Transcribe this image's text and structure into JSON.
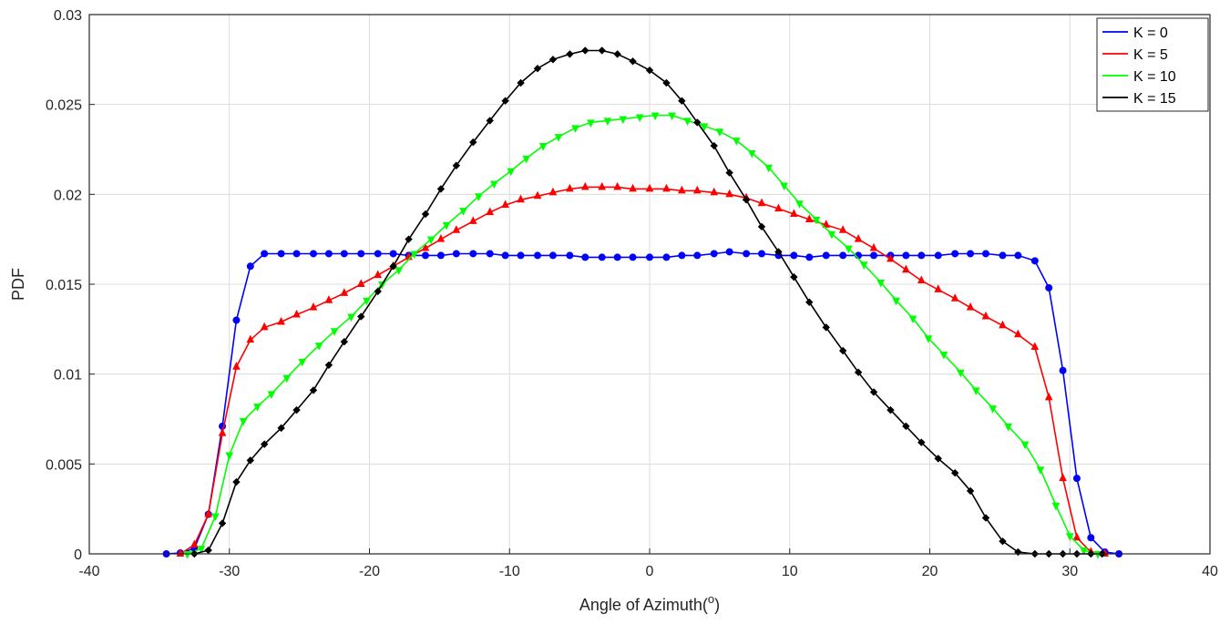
{
  "chart_data": {
    "type": "line",
    "title": "",
    "xlabel": "Angle of Azimuth(",
    "xlabel_sup": "o",
    "xlabel_end": ")",
    "ylabel": "PDF",
    "xlim": [
      -40,
      40
    ],
    "ylim": [
      0,
      0.03
    ],
    "xticks": [
      -40,
      -30,
      -20,
      -10,
      0,
      10,
      20,
      30,
      40
    ],
    "yticks": [
      0,
      0.005,
      0.01,
      0.015,
      0.02,
      0.025,
      0.03
    ],
    "xtick_labels": [
      "-40",
      "-30",
      "-20",
      "-10",
      "0",
      "10",
      "20",
      "30",
      "40"
    ],
    "ytick_labels": [
      "0",
      "0.005",
      "0.01",
      "0.015",
      "0.02",
      "0.025",
      "0.03"
    ],
    "grid": true,
    "legend_position": "top-right",
    "series": [
      {
        "name": "K = 0",
        "color": "#0000ff",
        "marker": "circle",
        "x": [
          -34.5,
          -33.5,
          -32.5,
          -31.5,
          -30.5,
          -29.5,
          -28.5,
          -27.5,
          -26.3,
          -25.2,
          -24.0,
          -22.9,
          -21.8,
          -20.6,
          -19.4,
          -18.3,
          -17.2,
          -16.0,
          -14.9,
          -13.8,
          -12.6,
          -11.4,
          -10.3,
          -9.2,
          -8.0,
          -6.9,
          -5.7,
          -4.6,
          -3.4,
          -2.3,
          -1.2,
          0.0,
          1.2,
          2.3,
          3.4,
          4.6,
          5.7,
          6.9,
          8.0,
          9.2,
          10.3,
          11.4,
          12.6,
          13.8,
          14.9,
          16.0,
          17.2,
          18.3,
          19.4,
          20.6,
          21.8,
          22.9,
          24.0,
          25.2,
          26.3,
          27.5,
          28.5,
          29.5,
          30.5,
          31.5,
          32.5,
          33.5
        ],
        "y": [
          0.0,
          5e-05,
          0.0003,
          0.0022,
          0.0071,
          0.013,
          0.016,
          0.0167,
          0.0167,
          0.0167,
          0.0167,
          0.0167,
          0.0167,
          0.0167,
          0.0167,
          0.0167,
          0.0166,
          0.0166,
          0.0166,
          0.0167,
          0.0167,
          0.0167,
          0.0166,
          0.0166,
          0.0166,
          0.0166,
          0.0166,
          0.0165,
          0.0165,
          0.0165,
          0.0165,
          0.0165,
          0.0165,
          0.0166,
          0.0166,
          0.0167,
          0.0168,
          0.0167,
          0.0167,
          0.0166,
          0.0166,
          0.0165,
          0.0166,
          0.0166,
          0.0166,
          0.0166,
          0.0166,
          0.0166,
          0.0166,
          0.0166,
          0.0167,
          0.0167,
          0.0167,
          0.0166,
          0.0166,
          0.0163,
          0.0148,
          0.0102,
          0.0042,
          0.0009,
          0.0001,
          0.0
        ]
      },
      {
        "name": "K = 5",
        "color": "#ff0000",
        "marker": "triangle-up",
        "x": [
          -33.5,
          -32.5,
          -31.5,
          -30.5,
          -29.5,
          -28.5,
          -27.5,
          -26.3,
          -25.2,
          -24.0,
          -22.9,
          -21.8,
          -20.6,
          -19.4,
          -18.3,
          -17.2,
          -16.0,
          -14.9,
          -13.8,
          -12.6,
          -11.4,
          -10.3,
          -9.2,
          -8.0,
          -6.9,
          -5.7,
          -4.6,
          -3.4,
          -2.3,
          -1.2,
          0.0,
          1.2,
          2.3,
          3.4,
          4.6,
          5.7,
          6.9,
          8.0,
          9.2,
          10.3,
          11.4,
          12.6,
          13.8,
          14.9,
          16.0,
          17.2,
          18.3,
          19.4,
          20.6,
          21.8,
          22.9,
          24.0,
          25.2,
          26.3,
          27.5,
          28.5,
          29.5,
          30.5,
          31.5,
          32.5
        ],
        "y": [
          0.0,
          0.0005,
          0.0022,
          0.0067,
          0.0104,
          0.0119,
          0.0126,
          0.0129,
          0.0133,
          0.0137,
          0.0141,
          0.0145,
          0.015,
          0.0155,
          0.016,
          0.0165,
          0.017,
          0.0175,
          0.018,
          0.0185,
          0.019,
          0.0194,
          0.0197,
          0.0199,
          0.0201,
          0.0203,
          0.0204,
          0.0204,
          0.0204,
          0.0203,
          0.0203,
          0.0203,
          0.0202,
          0.0202,
          0.0201,
          0.02,
          0.0198,
          0.0195,
          0.0192,
          0.0189,
          0.0186,
          0.0183,
          0.018,
          0.0175,
          0.017,
          0.0164,
          0.0158,
          0.0152,
          0.0147,
          0.0142,
          0.0137,
          0.0132,
          0.0127,
          0.0122,
          0.0115,
          0.0087,
          0.0042,
          0.0009,
          0.0001,
          0.0
        ]
      },
      {
        "name": "K = 10",
        "color": "#00ff00",
        "marker": "triangle-down",
        "x": [
          -33.0,
          -32.0,
          -31.0,
          -30.0,
          -29.0,
          -28.0,
          -27.0,
          -25.9,
          -24.8,
          -23.6,
          -22.5,
          -21.3,
          -20.2,
          -19.1,
          -17.9,
          -16.8,
          -15.6,
          -14.5,
          -13.3,
          -12.2,
          -11.1,
          -9.9,
          -8.8,
          -7.6,
          -6.5,
          -5.3,
          -4.2,
          -3.0,
          -1.9,
          -0.7,
          0.4,
          1.6,
          2.7,
          3.9,
          5.0,
          6.2,
          7.3,
          8.5,
          9.6,
          10.7,
          11.9,
          13.0,
          14.2,
          15.3,
          16.5,
          17.6,
          18.8,
          19.9,
          21.0,
          22.2,
          23.3,
          24.5,
          25.6,
          26.8,
          27.9,
          29.0,
          30.0,
          31.0,
          32.0
        ],
        "y": [
          0.0,
          0.0003,
          0.0021,
          0.0055,
          0.0074,
          0.0082,
          0.0089,
          0.0098,
          0.0107,
          0.0116,
          0.0124,
          0.0132,
          0.0141,
          0.015,
          0.0158,
          0.0167,
          0.0175,
          0.0183,
          0.0191,
          0.0199,
          0.0206,
          0.0213,
          0.022,
          0.0227,
          0.0232,
          0.0237,
          0.024,
          0.0241,
          0.0242,
          0.0243,
          0.0244,
          0.0244,
          0.0241,
          0.0238,
          0.0235,
          0.023,
          0.0223,
          0.0215,
          0.0205,
          0.0195,
          0.0186,
          0.0178,
          0.017,
          0.0161,
          0.0151,
          0.0141,
          0.0131,
          0.012,
          0.0111,
          0.0101,
          0.0091,
          0.0081,
          0.0071,
          0.0061,
          0.0047,
          0.0027,
          0.001,
          0.0002,
          0.0
        ]
      },
      {
        "name": "K = 15",
        "color": "#000000",
        "marker": "diamond",
        "x": [
          -32.5,
          -31.5,
          -30.5,
          -29.5,
          -28.5,
          -27.5,
          -26.3,
          -25.2,
          -24.0,
          -22.9,
          -21.8,
          -20.6,
          -19.4,
          -18.3,
          -17.2,
          -16.0,
          -14.9,
          -13.8,
          -12.6,
          -11.4,
          -10.3,
          -9.2,
          -8.0,
          -6.9,
          -5.7,
          -4.6,
          -3.4,
          -2.3,
          -1.2,
          0.0,
          1.2,
          2.3,
          3.4,
          4.6,
          5.7,
          6.9,
          8.0,
          9.2,
          10.3,
          11.4,
          12.6,
          13.8,
          14.9,
          16.0,
          17.2,
          18.3,
          19.4,
          20.6,
          21.8,
          22.9,
          24.0,
          25.2,
          26.3,
          27.5,
          28.5,
          29.5,
          30.5,
          31.5,
          32.3
        ],
        "y": [
          0.0,
          0.0002,
          0.0017,
          0.004,
          0.0052,
          0.0061,
          0.007,
          0.008,
          0.0091,
          0.0105,
          0.0118,
          0.0132,
          0.0146,
          0.016,
          0.0175,
          0.0189,
          0.0203,
          0.0216,
          0.0229,
          0.0241,
          0.0252,
          0.0262,
          0.027,
          0.0275,
          0.0278,
          0.028,
          0.028,
          0.0278,
          0.0274,
          0.0269,
          0.0262,
          0.0252,
          0.024,
          0.0227,
          0.0212,
          0.0197,
          0.0182,
          0.0168,
          0.0154,
          0.014,
          0.0126,
          0.0113,
          0.0101,
          0.009,
          0.008,
          0.0071,
          0.0062,
          0.0053,
          0.0045,
          0.0035,
          0.002,
          0.0007,
          0.0001,
          0.0,
          0.0,
          0.0,
          0.0,
          0.0,
          0.0
        ]
      }
    ]
  }
}
